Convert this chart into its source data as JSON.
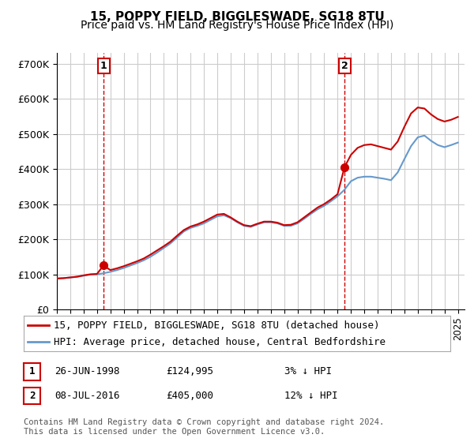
{
  "title": "15, POPPY FIELD, BIGGLESWADE, SG18 8TU",
  "subtitle": "Price paid vs. HM Land Registry's House Price Index (HPI)",
  "ylabel_ticks": [
    "£0",
    "£100K",
    "£200K",
    "£300K",
    "£400K",
    "£500K",
    "£600K",
    "£700K"
  ],
  "ytick_values": [
    0,
    100000,
    200000,
    300000,
    400000,
    500000,
    600000,
    700000
  ],
  "ylim": [
    0,
    730000
  ],
  "xlim_start": 1995.0,
  "xlim_end": 2025.5,
  "sale1_date": 1998.49,
  "sale1_price": 124995,
  "sale1_label": "1",
  "sale2_date": 2016.52,
  "sale2_price": 405000,
  "sale2_label": "2",
  "legend_line1": "15, POPPY FIELD, BIGGLESWADE, SG18 8TU (detached house)",
  "legend_line2": "HPI: Average price, detached house, Central Bedfordshire",
  "table_row1": [
    "1",
    "26-JUN-1998",
    "£124,995",
    "3% ↓ HPI"
  ],
  "table_row2": [
    "2",
    "08-JUL-2016",
    "£405,000",
    "12% ↓ HPI"
  ],
  "footer": "Contains HM Land Registry data © Crown copyright and database right 2024.\nThis data is licensed under the Open Government Licence v3.0.",
  "hpi_color": "#6699cc",
  "price_color": "#cc0000",
  "sale_marker_color": "#cc0000",
  "vline_color": "#cc0000",
  "bg_color": "#ffffff",
  "grid_color": "#cccccc",
  "title_fontsize": 11,
  "subtitle_fontsize": 10,
  "tick_fontsize": 9,
  "legend_fontsize": 9,
  "table_fontsize": 9,
  "footer_fontsize": 7.5,
  "hpi_dates": [
    1995.0,
    1995.5,
    1996.0,
    1996.5,
    1997.0,
    1997.5,
    1998.0,
    1998.5,
    1999.0,
    1999.5,
    2000.0,
    2000.5,
    2001.0,
    2001.5,
    2002.0,
    2002.5,
    2003.0,
    2003.5,
    2004.0,
    2004.5,
    2005.0,
    2005.5,
    2006.0,
    2006.5,
    2007.0,
    2007.5,
    2008.0,
    2008.5,
    2009.0,
    2009.5,
    2010.0,
    2010.5,
    2011.0,
    2011.5,
    2012.0,
    2012.5,
    2013.0,
    2013.5,
    2014.0,
    2014.5,
    2015.0,
    2015.5,
    2016.0,
    2016.5,
    2017.0,
    2017.5,
    2018.0,
    2018.5,
    2019.0,
    2019.5,
    2020.0,
    2020.5,
    2021.0,
    2021.5,
    2022.0,
    2022.5,
    2023.0,
    2023.5,
    2024.0,
    2024.5,
    2025.0
  ],
  "hpi_values": [
    88000,
    89000,
    91000,
    93000,
    96000,
    99000,
    100000,
    103000,
    107000,
    112000,
    118000,
    125000,
    132000,
    140000,
    150000,
    162000,
    175000,
    188000,
    205000,
    222000,
    232000,
    238000,
    245000,
    255000,
    265000,
    268000,
    260000,
    248000,
    238000,
    235000,
    242000,
    248000,
    248000,
    245000,
    238000,
    238000,
    245000,
    258000,
    272000,
    285000,
    295000,
    308000,
    322000,
    340000,
    365000,
    375000,
    378000,
    378000,
    375000,
    372000,
    368000,
    390000,
    428000,
    465000,
    490000,
    495000,
    480000,
    468000,
    462000,
    468000,
    475000
  ],
  "price_dates": [
    1995.0,
    1995.5,
    1996.0,
    1996.5,
    1997.0,
    1997.5,
    1998.0,
    1998.49,
    1999.0,
    1999.5,
    2000.0,
    2000.5,
    2001.0,
    2001.5,
    2002.0,
    2002.5,
    2003.0,
    2003.5,
    2004.0,
    2004.5,
    2005.0,
    2005.5,
    2006.0,
    2006.5,
    2007.0,
    2007.5,
    2008.0,
    2008.5,
    2009.0,
    2009.5,
    2010.0,
    2010.5,
    2011.0,
    2011.5,
    2012.0,
    2012.5,
    2013.0,
    2013.5,
    2014.0,
    2014.5,
    2015.0,
    2015.5,
    2016.0,
    2016.52,
    2017.0,
    2017.5,
    2018.0,
    2018.5,
    2019.0,
    2019.5,
    2020.0,
    2020.5,
    2021.0,
    2021.5,
    2022.0,
    2022.5,
    2023.0,
    2023.5,
    2024.0,
    2024.5,
    2025.0
  ],
  "price_values": [
    88000,
    89000,
    91000,
    93000,
    97000,
    100000,
    101000,
    124995,
    112000,
    117000,
    123000,
    130000,
    137000,
    145000,
    156000,
    168000,
    180000,
    193000,
    210000,
    226000,
    236000,
    242000,
    250000,
    260000,
    270000,
    272000,
    262000,
    250000,
    240000,
    237000,
    244000,
    250000,
    250000,
    247000,
    240000,
    241000,
    248000,
    262000,
    276000,
    290000,
    300000,
    313000,
    328000,
    405000,
    440000,
    460000,
    468000,
    470000,
    465000,
    460000,
    455000,
    478000,
    520000,
    558000,
    575000,
    572000,
    555000,
    542000,
    535000,
    540000,
    548000
  ]
}
